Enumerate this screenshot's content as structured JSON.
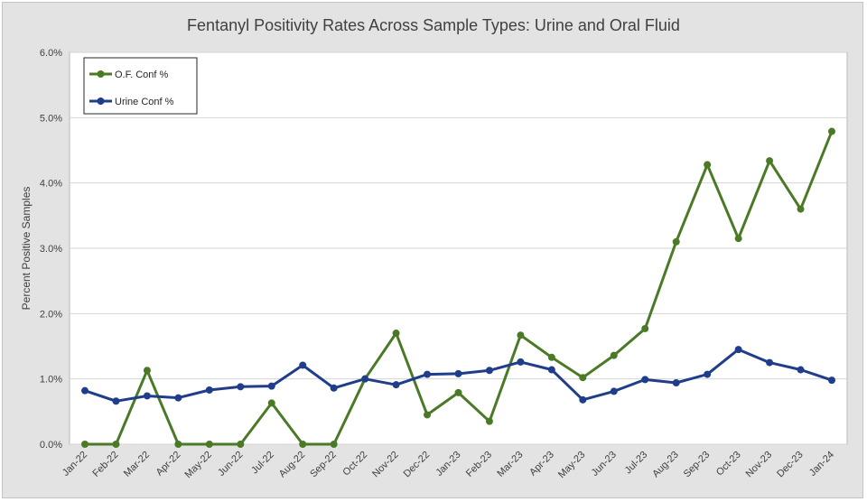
{
  "chart_data": {
    "type": "line",
    "title": "Fentanyl Positivity Rates Across Sample Types: Urine and Oral Fluid",
    "xlabel": "",
    "ylabel": "Percent Positive Samples",
    "ylim": [
      0,
      6
    ],
    "y_ticks": [
      "0.0%",
      "1.0%",
      "2.0%",
      "3.0%",
      "4.0%",
      "5.0%",
      "6.0%"
    ],
    "grid": true,
    "legend_position": "top-left",
    "categories": [
      "Jan-22",
      "Feb-22",
      "Mar-22",
      "Apr-22",
      "May-22",
      "Jun-22",
      "Jul-22",
      "Aug-22",
      "Sep-22",
      "Oct-22",
      "Nov-22",
      "Dec-22",
      "Jan-23",
      "Feb-23",
      "Mar-23",
      "Apr-23",
      "May-23",
      "Jun-23",
      "Jul-23",
      "Aug-23",
      "Sep-23",
      "Oct-23",
      "Nov-23",
      "Dec-23",
      "Jan-24"
    ],
    "series": [
      {
        "name": "O.F. Conf %",
        "color": "#4a7a26",
        "values": [
          0.0,
          0.0,
          1.13,
          0.0,
          0.0,
          0.0,
          0.63,
          0.0,
          0.0,
          1.0,
          1.7,
          0.45,
          0.79,
          0.35,
          1.67,
          1.33,
          1.02,
          1.36,
          1.77,
          3.1,
          4.28,
          3.15,
          4.34,
          3.6,
          4.79
        ]
      },
      {
        "name": "Urine Conf %",
        "color": "#1f3d8a",
        "values": [
          0.82,
          0.66,
          0.74,
          0.71,
          0.83,
          0.88,
          0.89,
          1.21,
          0.86,
          1.0,
          0.91,
          1.07,
          1.08,
          1.13,
          1.26,
          1.14,
          0.68,
          0.81,
          0.99,
          0.94,
          1.07,
          1.45,
          1.25,
          1.14,
          0.98
        ]
      }
    ]
  }
}
